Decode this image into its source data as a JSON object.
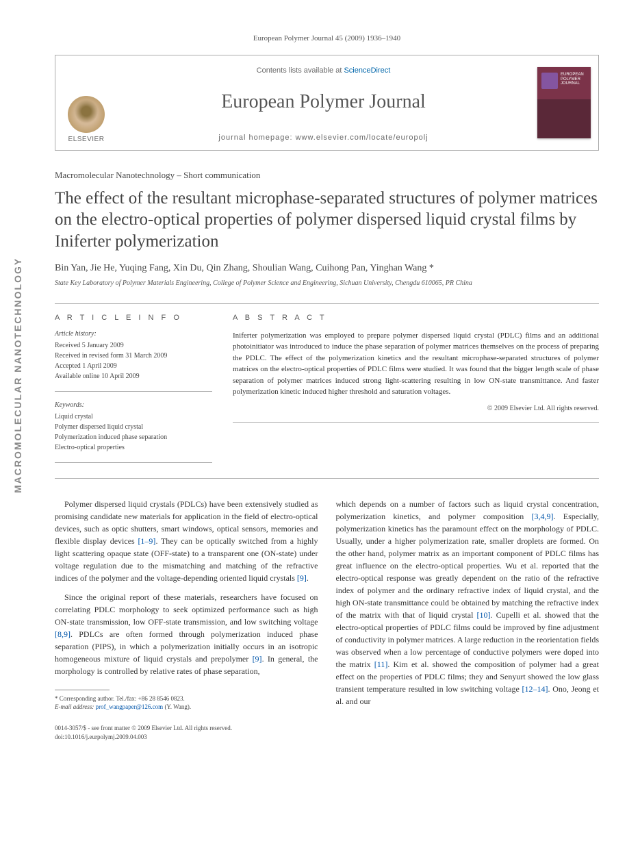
{
  "sidebar": {
    "vertical_label": "MACROMOLECULAR NANOTECHNOLOGY"
  },
  "header": {
    "journal_ref": "European Polymer Journal 45 (2009) 1936–1940",
    "contents_prefix": "Contents lists available at ",
    "sciencedirect": "ScienceDirect",
    "journal_name": "European Polymer Journal",
    "homepage_prefix": "journal homepage: ",
    "homepage_url": "www.elsevier.com/locate/europolj",
    "elsevier": "ELSEVIER",
    "cover_title": "EUROPEAN POLYMER JOURNAL"
  },
  "article": {
    "section_label": "Macromolecular Nanotechnology – Short communication",
    "title": "The effect of the resultant microphase-separated structures of polymer matrices on the electro-optical properties of polymer dispersed liquid crystal films by Iniferter polymerization",
    "authors": "Bin Yan, Jie He, Yuqing Fang, Xin Du, Qin Zhang, Shoulian Wang, Cuihong Pan, Yinghan Wang *",
    "affiliation": "State Key Laboratory of Polymer Materials Engineering, College of Polymer Science and Engineering, Sichuan University, Chengdu 610065, PR China"
  },
  "meta": {
    "info_heading": "A R T I C L E   I N F O",
    "abstract_heading": "A B S T R A C T",
    "history_label": "Article history:",
    "history": "Received 5 January 2009\nReceived in revised form 31 March 2009\nAccepted 1 April 2009\nAvailable online 10 April 2009",
    "keywords_label": "Keywords:",
    "keywords": "Liquid crystal\nPolymer dispersed liquid crystal\nPolymerization induced phase separation\nElectro-optical properties",
    "abstract": "Iniferter polymerization was employed to prepare polymer dispersed liquid crystal (PDLC) films and an additional photoinitiator was introduced to induce the phase separation of polymer matrices themselves on the process of preparing the PDLC. The effect of the polymerization kinetics and the resultant microphase-separated structures of polymer matrices on the electro-optical properties of PDLC films were studied. It was found that the bigger length scale of phase separation of polymer matrices induced strong light-scattering resulting in low ON-state transmittance. And faster polymerization kinetic induced higher threshold and saturation voltages.",
    "copyright": "© 2009 Elsevier Ltd. All rights reserved."
  },
  "body": {
    "col1_p1": "Polymer dispersed liquid crystals (PDLCs) have been extensively studied as promising candidate new materials for application in the field of electro-optical devices, such as optic shutters, smart windows, optical sensors, memories and flexible display devices [1–9]. They can be optically switched from a highly light scattering opaque state (OFF-state) to a transparent one (ON-state) under voltage regulation due to the mismatching and matching of the refractive indices of the polymer and the voltage-depending oriented liquid crystals [9].",
    "col1_p2": "Since the original report of these materials, researchers have focused on correlating PDLC morphology to seek optimized performance such as high ON-state transmission, low OFF-state transmission, and low switching voltage [8,9]. PDLCs are often formed through polymerization induced phase separation (PIPS), in which a polymerization initially occurs in an isotropic homogeneous mixture of liquid crystals and prepolymer [9]. In general, the morphology is controlled by relative rates of phase separation,",
    "col2_p1": "which depends on a number of factors such as liquid crystal concentration, polymerization kinetics, and polymer composition [3,4,9]. Especially, polymerization kinetics has the paramount effect on the morphology of PDLC. Usually, under a higher polymerization rate, smaller droplets are formed. On the other hand, polymer matrix as an important component of PDLC films has great influence on the electro-optical properties. Wu et al. reported that the electro-optical response was greatly dependent on the ratio of the refractive index of polymer and the ordinary refractive index of liquid crystal, and the high ON-state transmittance could be obtained by matching the refractive index of the matrix with that of liquid crystal [10]. Cupelli et al. showed that the electro-optical properties of PDLC films could be improved by fine adjustment of conductivity in polymer matrices. A large reduction in the reorientation fields was observed when a low percentage of conductive polymers were doped into the matrix [11]. Kim et al. showed the composition of polymer had a great effect on the properties of PDLC films; they and Senyurt showed the low glass transient temperature resulted in low switching voltage [12–14]. Ono, Jeong et al. and our"
  },
  "footnote": {
    "corresponding": "* Corresponding author. Tel./fax: +86 28 8546 0823.",
    "email_label": "E-mail address: ",
    "email": "prof_wangpaper@126.com",
    "email_suffix": " (Y. Wang)."
  },
  "footer": {
    "line1": "0014-3057/$ - see front matter © 2009 Elsevier Ltd. All rights reserved.",
    "line2": "doi:10.1016/j.eurpolymj.2009.04.003"
  },
  "colors": {
    "link": "#0055aa",
    "text": "#333333",
    "muted": "#666666",
    "border": "#aaaaaa",
    "cover_top": "#7b3349",
    "cover_bottom": "#5a2838"
  }
}
